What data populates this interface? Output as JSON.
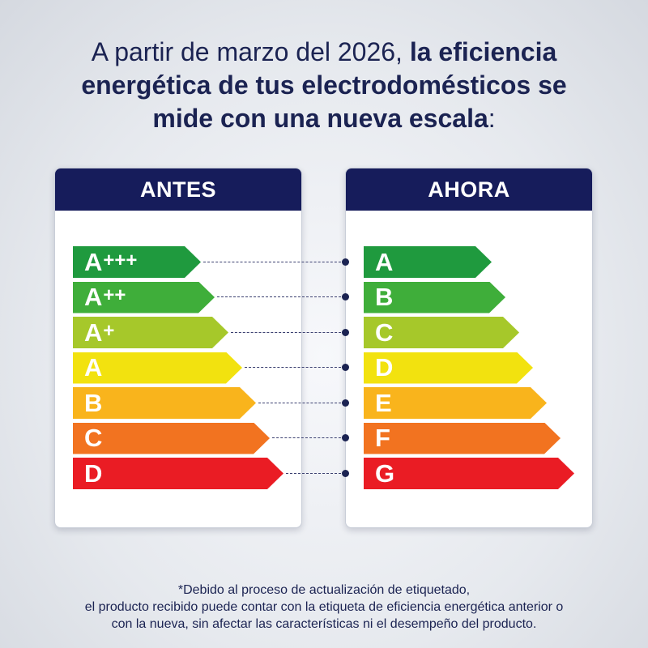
{
  "headline": {
    "line1_regular": "A partir de marzo del 2026, ",
    "line1_bold": "la eficiencia",
    "line2_bold": "energética de tus electrodomésticos se",
    "line3_bold": "mide con una nueva escala",
    "line3_regular": ":"
  },
  "before": {
    "title": "ANTES",
    "classes": [
      {
        "letter": "A",
        "plus": "+++",
        "color": "#1f9a3e"
      },
      {
        "letter": "A",
        "plus": "++",
        "color": "#3fae3a"
      },
      {
        "letter": "A",
        "plus": "+",
        "color": "#a6c82a"
      },
      {
        "letter": "A",
        "plus": "",
        "color": "#f2e20f"
      },
      {
        "letter": "B",
        "plus": "",
        "color": "#f9b41c"
      },
      {
        "letter": "C",
        "plus": "",
        "color": "#f27320"
      },
      {
        "letter": "D",
        "plus": "",
        "color": "#ea1c24"
      }
    ]
  },
  "now": {
    "title": "AHORA",
    "classes": [
      {
        "letter": "A",
        "color": "#1f9a3e"
      },
      {
        "letter": "B",
        "color": "#3fae3a"
      },
      {
        "letter": "C",
        "color": "#a6c82a"
      },
      {
        "letter": "D",
        "color": "#f2e20f"
      },
      {
        "letter": "E",
        "color": "#f9b41c"
      },
      {
        "letter": "F",
        "color": "#f27320"
      },
      {
        "letter": "G",
        "color": "#ea1c24"
      }
    ]
  },
  "footnote": {
    "line1": "*Debido al proceso de actualización de etiquetado,",
    "line2": "el producto recibido puede contar con la etiqueta de eficiencia energética anterior o",
    "line3": "con la nueva, sin afectar las características ni el desempeño del producto."
  }
}
